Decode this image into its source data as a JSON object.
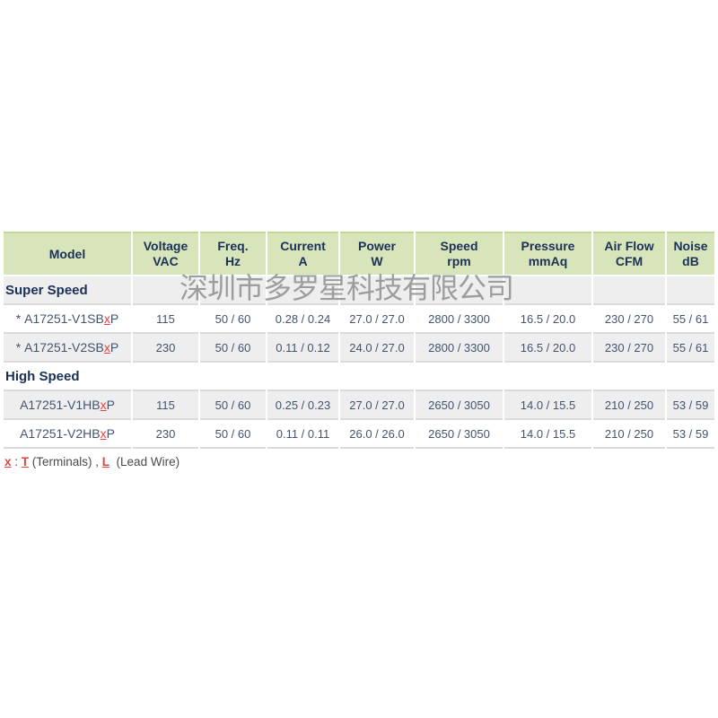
{
  "watermark": "深圳市多罗星科技有限公司",
  "colors": {
    "header_bg": "#d8e4ba",
    "header_top_border": "#c3d698",
    "header_text": "#1b3156",
    "data_text": "#44536f",
    "row_alt_bg": "#eeeeee",
    "separator": "#dadada",
    "red_accent": "#e0433c",
    "footnote_text": "#4a4a4a",
    "watermark_color": "#8f8f8f"
  },
  "table": {
    "columns": [
      {
        "line1": "Model",
        "line2": ""
      },
      {
        "line1": "Voltage",
        "line2": "VAC"
      },
      {
        "line1": "Freq.",
        "line2": "Hz"
      },
      {
        "line1": "Current",
        "line2": "A"
      },
      {
        "line1": "Power",
        "line2": "W"
      },
      {
        "line1": "Speed",
        "line2": "rpm"
      },
      {
        "line1": "Pressure",
        "line2": "mmAq"
      },
      {
        "line1": "Air Flow",
        "line2": "CFM"
      },
      {
        "line1": "Noise",
        "line2": "dB"
      }
    ],
    "sections": [
      {
        "title": "Super Speed",
        "rows": [
          {
            "model": {
              "prefix": "* ",
              "base": "A17251-V1SB",
              "x": "x",
              "suffix": "P"
            },
            "voltage": "115",
            "freq": "50 / 60",
            "current": "0.28 / 0.24",
            "power": "27.0 / 27.0",
            "speed": "2800 / 3300",
            "pressure": "16.5 / 20.0",
            "airflow": "230 / 270",
            "noise": "55 / 61"
          },
          {
            "model": {
              "prefix": "* ",
              "base": "A17251-V2SB",
              "x": "x",
              "suffix": "P"
            },
            "voltage": "230",
            "freq": "50 / 60",
            "current": "0.11 / 0.12",
            "power": "24.0 / 27.0",
            "speed": "2800 / 3300",
            "pressure": "16.5 / 20.0",
            "airflow": "230 / 270",
            "noise": "55 / 61"
          }
        ]
      },
      {
        "title": "High Speed",
        "rows": [
          {
            "model": {
              "prefix": "",
              "base": "A17251-V1HB",
              "x": "x",
              "suffix": "P"
            },
            "voltage": "115",
            "freq": "50 / 60",
            "current": "0.25 / 0.23",
            "power": "27.0 / 27.0",
            "speed": "2650 / 3050",
            "pressure": "14.0 / 15.5",
            "airflow": "210 / 250",
            "noise": "53 / 59"
          },
          {
            "model": {
              "prefix": "",
              "base": "A17251-V2HB",
              "x": "x",
              "suffix": "P"
            },
            "voltage": "230",
            "freq": "50 / 60",
            "current": "0.11 / 0.11",
            "power": "26.0 / 26.0",
            "speed": "2650 / 3050",
            "pressure": "14.0 / 15.5",
            "airflow": "210 / 250",
            "noise": "53 / 59"
          }
        ]
      }
    ]
  },
  "footnote": {
    "x": "x",
    "colon": " : ",
    "t": "T",
    "terminals": " (Terminals) , ",
    "l": "L",
    "leadwire": "  (Lead Wire)"
  }
}
